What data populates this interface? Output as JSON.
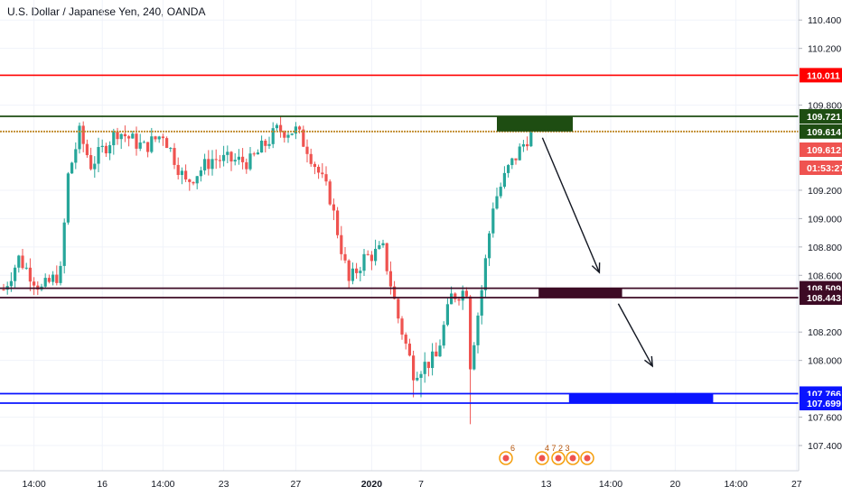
{
  "header": {
    "title": "U.S. Dollar / Japanese Yen, 240, OANDA"
  },
  "colors": {
    "up": "#26a69a",
    "down": "#ef5350",
    "resistance": "#ff0000",
    "green_zone": "#1e4d12",
    "maroon_zone": "#3d0b25",
    "blue_zone": "#0a14ff",
    "current_price": "#ef5350"
  },
  "chart_data": {
    "type": "candlestick",
    "symbol": "USDJPY",
    "timeframe": "240",
    "ylim": [
      107.2,
      110.5
    ],
    "y_ticks": [
      "110.400",
      "110.200",
      "109.800",
      "109.200",
      "109.000",
      "108.800",
      "108.600",
      "108.200",
      "108.000",
      "107.600",
      "107.400"
    ],
    "x_ticks": [
      "14:00",
      "16",
      "14:00",
      "23",
      "27",
      "2020",
      "7",
      "13",
      "14:00",
      "20",
      "14:00",
      "27"
    ],
    "price_labels": [
      {
        "name": "resistance",
        "value": "110.011"
      },
      {
        "name": "green-zone-top",
        "value": "109.721"
      },
      {
        "name": "green-zone-bottom",
        "value": "109.614"
      },
      {
        "name": "current-price",
        "value": "109.612"
      },
      {
        "name": "countdown",
        "value": "01:53:27"
      },
      {
        "name": "maroon-zone-top",
        "value": "108.509"
      },
      {
        "name": "maroon-zone-bottom",
        "value": "108.443"
      },
      {
        "name": "blue-zone-top",
        "value": "107.766"
      },
      {
        "name": "blue-zone-bottom",
        "value": "107.699"
      }
    ],
    "horizontal_lines": [
      {
        "name": "resistance",
        "value": 110.011,
        "style": "solid"
      },
      {
        "name": "green-top",
        "value": 109.721,
        "style": "solid"
      },
      {
        "name": "green-bottom",
        "value": 109.614,
        "style": "dotted"
      },
      {
        "name": "maroon-top",
        "value": 108.509,
        "style": "solid"
      },
      {
        "name": "maroon-bottom",
        "value": 108.443,
        "style": "solid"
      },
      {
        "name": "blue-top",
        "value": 107.766,
        "style": "solid"
      },
      {
        "name": "blue-bottom",
        "value": 107.699,
        "style": "solid"
      }
    ],
    "zones": [
      {
        "name": "green",
        "top": 109.721,
        "bottom": 109.614,
        "from_bar": 130,
        "to_bar": 150
      },
      {
        "name": "maroon",
        "top": 108.509,
        "bottom": 108.443,
        "from_bar": 141,
        "to_bar": 163
      },
      {
        "name": "blue",
        "top": 107.766,
        "bottom": 107.699,
        "from_bar": 149,
        "to_bar": 187
      }
    ],
    "arrows": [
      {
        "from": {
          "bar": 142,
          "price": 109.57
        },
        "to": {
          "bar": 157,
          "price": 108.62
        }
      },
      {
        "from": {
          "bar": 162,
          "price": 108.4
        },
        "to": {
          "bar": 171,
          "price": 107.96
        }
      }
    ],
    "key_points": [
      {
        "bar": 0,
        "price": 108.5
      },
      {
        "bar": 4,
        "price": 108.72
      },
      {
        "bar": 10,
        "price": 108.5
      },
      {
        "bar": 15,
        "price": 108.62
      },
      {
        "bar": 17,
        "price": 109.3
      },
      {
        "bar": 20,
        "price": 109.6
      },
      {
        "bar": 23,
        "price": 109.38
      },
      {
        "bar": 30,
        "price": 109.62
      },
      {
        "bar": 37,
        "price": 109.5
      },
      {
        "bar": 42,
        "price": 109.6
      },
      {
        "bar": 48,
        "price": 109.25
      },
      {
        "bar": 55,
        "price": 109.42
      },
      {
        "bar": 65,
        "price": 109.4
      },
      {
        "bar": 72,
        "price": 109.62
      },
      {
        "bar": 77,
        "price": 109.62
      },
      {
        "bar": 80,
        "price": 109.5
      },
      {
        "bar": 86,
        "price": 109.15
      },
      {
        "bar": 91,
        "price": 108.55
      },
      {
        "bar": 95,
        "price": 108.72
      },
      {
        "bar": 100,
        "price": 108.78
      },
      {
        "bar": 104,
        "price": 108.3
      },
      {
        "bar": 108,
        "price": 107.92
      },
      {
        "bar": 114,
        "price": 108.02
      },
      {
        "bar": 118,
        "price": 108.45
      },
      {
        "bar": 122,
        "price": 108.5
      },
      {
        "bar": 123,
        "price": 107.98
      },
      {
        "bar": 126,
        "price": 108.5
      },
      {
        "bar": 129,
        "price": 109.1
      },
      {
        "bar": 133,
        "price": 109.35
      },
      {
        "bar": 139,
        "price": 109.612
      }
    ],
    "total_bars": 200,
    "x_tick_bars": [
      8,
      26,
      42,
      58,
      77,
      97,
      110,
      143,
      160,
      177,
      193,
      209
    ]
  },
  "events": [
    {
      "name": "us-event",
      "count": "6"
    },
    {
      "name": "multi-event",
      "count": "4 7 2 3"
    }
  ]
}
